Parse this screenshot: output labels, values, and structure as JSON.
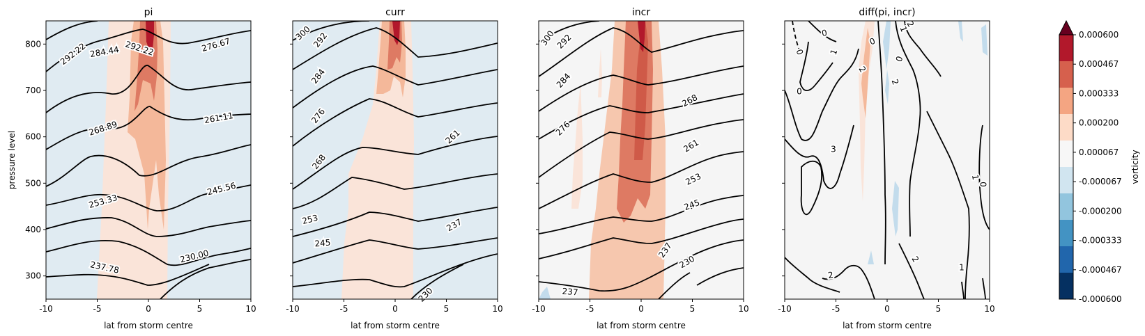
{
  "chart_data": [
    {
      "type": "contour",
      "title": "pi",
      "xlabel": "lat from storm centre",
      "ylabel": "pressure level",
      "xlim": [
        -10,
        10
      ],
      "ylim": [
        250,
        850
      ],
      "xticks": [
        -10,
        -5,
        0,
        5,
        10
      ],
      "yticks": [
        300,
        400,
        500,
        600,
        700,
        800
      ],
      "contour_labels": [
        "292.22",
        "284.44",
        "292.22",
        "276.67",
        "268.89",
        "261.11",
        "253.33",
        "245.56",
        "237.78",
        "230.00"
      ]
    },
    {
      "type": "contour",
      "title": "curr",
      "xlabel": "lat from storm centre",
      "xlim": [
        -10,
        10
      ],
      "ylim": [
        250,
        850
      ],
      "xticks": [
        -10,
        -5,
        0,
        5,
        10
      ],
      "contour_labels": [
        "300",
        "292",
        "284",
        "276",
        "268",
        "261",
        "253",
        "245",
        "237",
        "230"
      ]
    },
    {
      "type": "contour",
      "title": "incr",
      "xlabel": "lat from storm centre",
      "xlim": [
        -10,
        10
      ],
      "ylim": [
        250,
        850
      ],
      "xticks": [
        -10,
        -5,
        0,
        5,
        10
      ],
      "contour_labels": [
        "300",
        "292",
        "284",
        "276",
        "268",
        "261",
        "253",
        "245",
        "237",
        "237",
        "230"
      ]
    },
    {
      "type": "contour",
      "title": "diff(pi, incr)",
      "xlabel": "lat from storm centre",
      "xlim": [
        -10,
        10
      ],
      "ylim": [
        250,
        850
      ],
      "xticks": [
        -10,
        -5,
        0,
        5,
        10
      ],
      "contour_labels": [
        "0",
        "0",
        "1",
        "2",
        "0",
        "1",
        "0",
        "2",
        "2",
        "0",
        "3",
        "1",
        "0",
        "2",
        "2",
        "1"
      ]
    }
  ],
  "colorbar": {
    "label": "vorticity",
    "ticks": [
      "0.000600",
      "0.000467",
      "0.000333",
      "0.000200",
      "0.000067",
      "-0.000067",
      "-0.000200",
      "-0.000333",
      "-0.000467",
      "-0.000600"
    ],
    "colors": [
      "#b2182b",
      "#d6604d",
      "#f4a582",
      "#fddbc7",
      "#f7f7f7",
      "#d1e5f0",
      "#92c5de",
      "#4393c3",
      "#2166ac",
      "#053061"
    ]
  },
  "colors": {
    "cold_bg": "#e0ebf2",
    "neutral_bg": "#f5f5f5",
    "light_red": "#fae4d9",
    "mid_red": "#f4b89a",
    "strong_red": "#de7a63",
    "dark_red": "#b2182b",
    "light_blue": "#c3dcec"
  }
}
